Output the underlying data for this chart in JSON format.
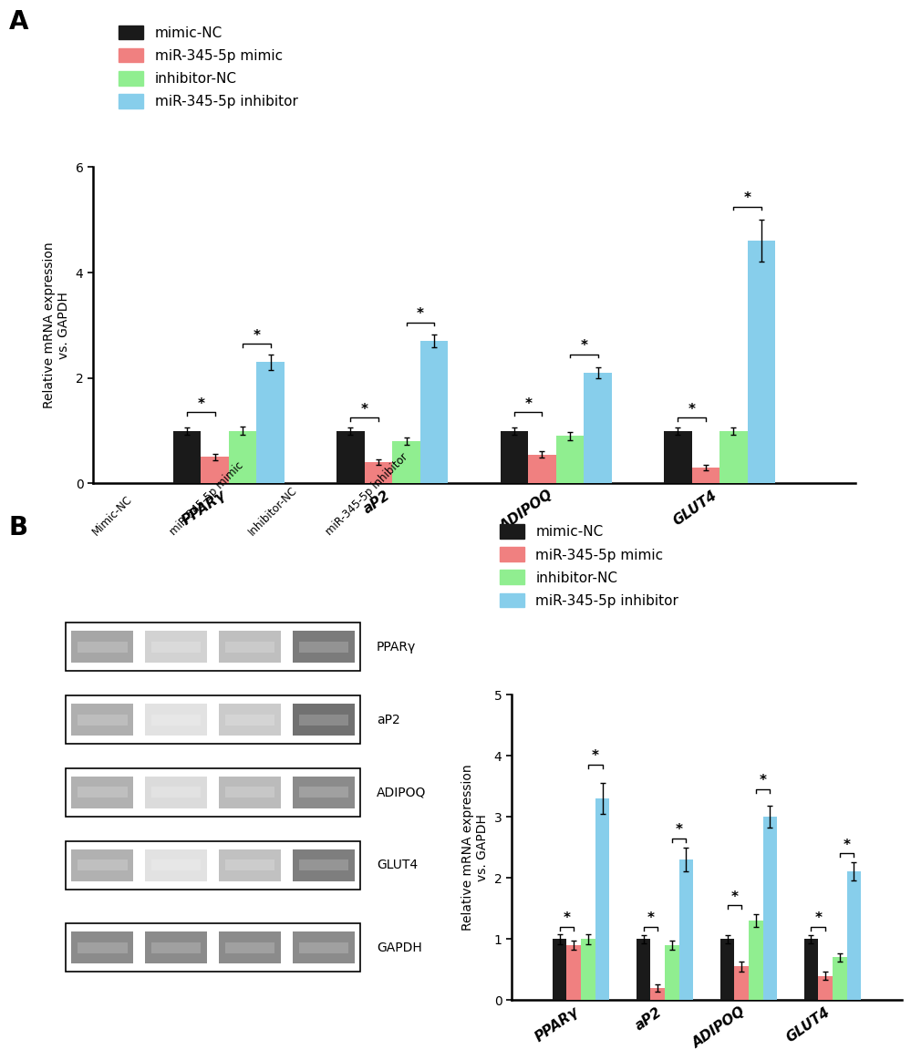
{
  "panel_A": {
    "categories": [
      "PPARγ",
      "aP2",
      "ADIPOQ",
      "GLUT4"
    ],
    "bar_values": {
      "mimic_NC": [
        1.0,
        1.0,
        1.0,
        1.0
      ],
      "miR_mimic": [
        0.5,
        0.4,
        0.55,
        0.3
      ],
      "inhibitor_NC": [
        1.0,
        0.8,
        0.9,
        1.0
      ],
      "miR_inhibitor": [
        2.3,
        2.7,
        2.1,
        4.6
      ]
    },
    "error_bars": {
      "mimic_NC": [
        0.07,
        0.07,
        0.07,
        0.07
      ],
      "miR_mimic": [
        0.06,
        0.05,
        0.06,
        0.05
      ],
      "inhibitor_NC": [
        0.08,
        0.07,
        0.08,
        0.07
      ],
      "miR_inhibitor": [
        0.15,
        0.12,
        0.1,
        0.4
      ]
    },
    "ylim": [
      0,
      6
    ],
    "yticks": [
      0,
      2,
      4,
      6
    ],
    "ylabel": "Relative mRNA expression\nvs. GAPDH",
    "significance_pairs": [
      {
        "group": 0,
        "bars": [
          0,
          1
        ],
        "y": 1.35,
        "label": "*"
      },
      {
        "group": 0,
        "bars": [
          2,
          3
        ],
        "y": 2.65,
        "label": "*"
      },
      {
        "group": 1,
        "bars": [
          0,
          1
        ],
        "y": 1.25,
        "label": "*"
      },
      {
        "group": 1,
        "bars": [
          2,
          3
        ],
        "y": 3.05,
        "label": "*"
      },
      {
        "group": 2,
        "bars": [
          0,
          1
        ],
        "y": 1.35,
        "label": "*"
      },
      {
        "group": 2,
        "bars": [
          2,
          3
        ],
        "y": 2.45,
        "label": "*"
      },
      {
        "group": 3,
        "bars": [
          0,
          1
        ],
        "y": 1.25,
        "label": "*"
      },
      {
        "group": 3,
        "bars": [
          2,
          3
        ],
        "y": 5.25,
        "label": "*"
      }
    ]
  },
  "panel_B_bar": {
    "categories": [
      "PPARγ",
      "aP2",
      "ADIPOQ",
      "GLUT4"
    ],
    "bar_values": {
      "mimic_NC": [
        1.0,
        1.0,
        1.0,
        1.0
      ],
      "miR_mimic": [
        0.9,
        0.2,
        0.55,
        0.4
      ],
      "inhibitor_NC": [
        1.0,
        0.9,
        1.3,
        0.7
      ],
      "miR_inhibitor": [
        3.3,
        2.3,
        3.0,
        2.1
      ]
    },
    "error_bars": {
      "mimic_NC": [
        0.08,
        0.07,
        0.07,
        0.07
      ],
      "miR_mimic": [
        0.07,
        0.06,
        0.08,
        0.06
      ],
      "inhibitor_NC": [
        0.08,
        0.07,
        0.1,
        0.07
      ],
      "miR_inhibitor": [
        0.25,
        0.2,
        0.18,
        0.15
      ]
    },
    "ylim": [
      0,
      5
    ],
    "yticks": [
      0,
      1,
      2,
      3,
      4,
      5
    ],
    "ylabel": "Relative mRNA expression\nvs. GAPDH",
    "significance_pairs": [
      {
        "group": 0,
        "bars": [
          0,
          1
        ],
        "y": 1.2,
        "label": "*"
      },
      {
        "group": 0,
        "bars": [
          2,
          3
        ],
        "y": 3.85,
        "label": "*"
      },
      {
        "group": 1,
        "bars": [
          0,
          1
        ],
        "y": 1.2,
        "label": "*"
      },
      {
        "group": 1,
        "bars": [
          2,
          3
        ],
        "y": 2.65,
        "label": "*"
      },
      {
        "group": 2,
        "bars": [
          0,
          1
        ],
        "y": 1.55,
        "label": "*"
      },
      {
        "group": 2,
        "bars": [
          2,
          3
        ],
        "y": 3.45,
        "label": "*"
      },
      {
        "group": 3,
        "bars": [
          0,
          1
        ],
        "y": 1.2,
        "label": "*"
      },
      {
        "group": 3,
        "bars": [
          2,
          3
        ],
        "y": 2.4,
        "label": "*"
      }
    ]
  },
  "colors": {
    "mimic_NC": "#1a1a1a",
    "miR_mimic": "#f08080",
    "inhibitor_NC": "#90ee90",
    "miR_inhibitor": "#87ceeb"
  },
  "legend_labels": [
    "mimic-NC",
    "miR-345-5p mimic",
    "inhibitor-NC",
    "miR-345-5p inhibitor"
  ],
  "legend_keys": [
    "mimic_NC",
    "miR_mimic",
    "inhibitor_NC",
    "miR_inhibitor"
  ],
  "western_blot_labels": [
    "PPARγ",
    "aP2",
    "ADIPOQ",
    "GLUT4",
    "GAPDH"
  ],
  "western_blot_col_labels": [
    "Mimic-NC",
    "miR-345-5p mimic",
    "Inhibitor-NC",
    "miR-345-5p inhibitor"
  ],
  "band_intensities": {
    "PPARγ": [
      0.55,
      0.28,
      0.4,
      0.82
    ],
    "aP2": [
      0.5,
      0.18,
      0.32,
      0.88
    ],
    "ADIPOQ": [
      0.48,
      0.22,
      0.42,
      0.72
    ],
    "GLUT4": [
      0.48,
      0.18,
      0.38,
      0.8
    ],
    "GAPDH": [
      0.72,
      0.72,
      0.72,
      0.72
    ]
  }
}
